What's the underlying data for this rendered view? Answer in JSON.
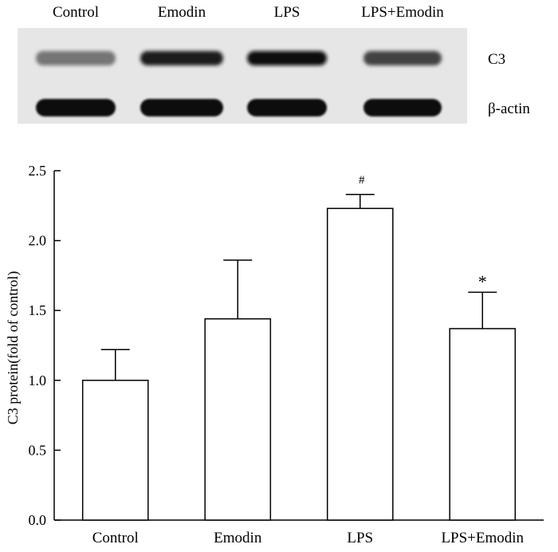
{
  "blot": {
    "lane_labels": [
      "Control",
      "Emodin",
      "LPS",
      "LPS+Emodin"
    ],
    "rows": [
      {
        "label": "C3",
        "intensity": [
          0.45,
          0.92,
          1.0,
          0.72
        ]
      },
      {
        "label": "β-actin",
        "intensity": [
          1.0,
          1.0,
          1.0,
          1.0
        ]
      }
    ]
  },
  "chart_data": {
    "type": "bar",
    "categories": [
      "Control",
      "Emodin",
      "LPS",
      "LPS+Emodin"
    ],
    "values": [
      1.0,
      1.44,
      2.23,
      1.37
    ],
    "errors": [
      0.22,
      0.42,
      0.1,
      0.26
    ],
    "annotations": [
      "",
      "",
      "#",
      "*"
    ],
    "xlabel": "",
    "ylabel": "C3 protein(fold of control)",
    "ylim": [
      0,
      2.5
    ],
    "yticks": [
      "0.0",
      "0.5",
      "1.0",
      "1.5",
      "2.0",
      "2.5"
    ],
    "grid": false,
    "bar_fill": "#ffffff",
    "bar_stroke": "#000000"
  }
}
